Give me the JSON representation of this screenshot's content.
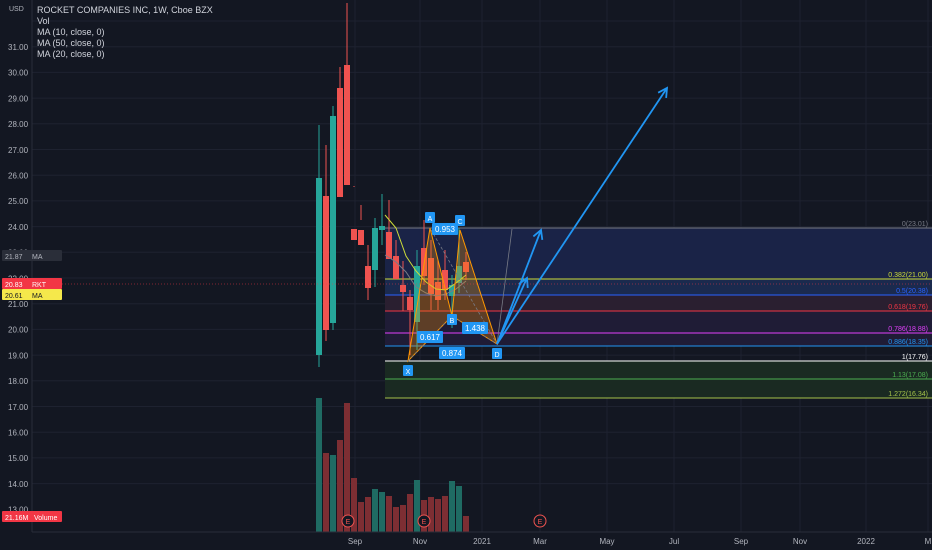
{
  "symbol": {
    "title": "ROCKET COMPANIES INC, 1W, Cboe BZX",
    "volume_label": "Vol",
    "ma_lines": [
      "MA (10, close, 0)",
      "MA (50, close, 0)",
      "MA (20, close, 0)"
    ]
  },
  "price_axis": {
    "unit": "USD",
    "ticks": [
      "31.00",
      "30.00",
      "29.00",
      "28.00",
      "27.00",
      "26.00",
      "25.00",
      "24.00",
      "23.00",
      "22.00",
      "21.00",
      "20.00",
      "19.00",
      "18.00",
      "17.00",
      "16.00",
      "15.00",
      "14.00",
      "13.00"
    ],
    "badges": [
      {
        "value": "21.87",
        "tag": "MA",
        "bg": "#2a2e39",
        "fg": "#b2b5be"
      },
      {
        "value": "20.83",
        "tag": "RKT",
        "bg": "#f23645",
        "fg": "#ffffff"
      },
      {
        "value": "20.61",
        "tag": "MA",
        "bg": "#f5e84b",
        "fg": "#131722"
      },
      {
        "value": "21.16M",
        "tag": "Volume",
        "bg": "#f23645",
        "fg": "#ffffff"
      }
    ]
  },
  "time_axis": [
    "Sep",
    "Nov",
    "2021",
    "Mar",
    "May",
    "Jul",
    "Sep",
    "Nov",
    "2022",
    "M"
  ],
  "earnings_marker": "E",
  "pattern": {
    "points": [
      "X",
      "A",
      "B",
      "C",
      "D"
    ],
    "ratios": [
      "0.953",
      "0.617",
      "0.874",
      "1.438"
    ]
  },
  "fib_levels": [
    {
      "label": "0(23.01)",
      "color": "#787b86"
    },
    {
      "label": "0.382(21.00)",
      "color": "#cddc39"
    },
    {
      "label": "0.5(20.38)",
      "color": "#2962ff"
    },
    {
      "label": "0.618(19.76)",
      "color": "#f23645"
    },
    {
      "label": "0.786(18.88)",
      "color": "#e040fb"
    },
    {
      "label": "0.886(18.35)",
      "color": "#2196f3"
    },
    {
      "label": "1(17.76)",
      "color": "#ffffff"
    },
    {
      "label": "1.13(17.08)",
      "color": "#4caf50"
    },
    {
      "label": "1.272(16.34)",
      "color": "#a5c34a"
    }
  ],
  "colors": {
    "up": "#26a69a",
    "down": "#ef5350",
    "pattern_label": "#2196f3",
    "arrow": "#2196f3"
  }
}
